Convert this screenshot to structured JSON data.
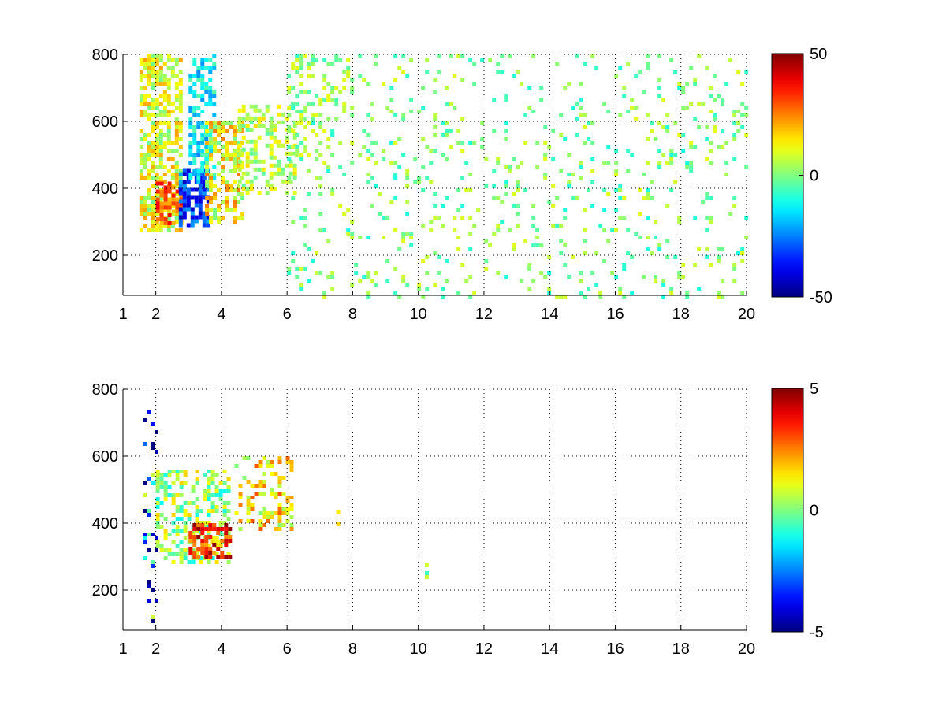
{
  "chart_data": [
    {
      "type": "heatmap",
      "title": "",
      "xlabel": "",
      "ylabel": "",
      "xlim": [
        1,
        20
      ],
      "ylim": [
        80,
        800
      ],
      "xticks": [
        1,
        2,
        4,
        6,
        8,
        10,
        12,
        14,
        16,
        18,
        20
      ],
      "yticks": [
        200,
        400,
        600,
        800
      ],
      "grid": true,
      "colormap": "jet",
      "colorbar": {
        "min": -50,
        "max": 50,
        "ticks": [
          50,
          0,
          -50
        ],
        "placement": "right"
      },
      "regions": [
        {
          "x": [
            1.5,
            2.8
          ],
          "y": [
            280,
            800
          ],
          "value": 10,
          "density": 0.6,
          "spread": 12
        },
        {
          "x": [
            2.0,
            2.8
          ],
          "y": [
            300,
            420
          ],
          "value": 28,
          "density": 0.7,
          "spread": 10
        },
        {
          "x": [
            2.7,
            3.6
          ],
          "y": [
            290,
            460
          ],
          "value": -32,
          "density": 0.75,
          "spread": 12
        },
        {
          "x": [
            3.0,
            3.8
          ],
          "y": [
            420,
            800
          ],
          "value": -14,
          "density": 0.55,
          "spread": 10
        },
        {
          "x": [
            3.5,
            4.6
          ],
          "y": [
            300,
            600
          ],
          "value": 12,
          "density": 0.55,
          "spread": 14
        },
        {
          "x": [
            4.5,
            6.2
          ],
          "y": [
            380,
            650
          ],
          "value": 6,
          "density": 0.4,
          "spread": 10
        },
        {
          "x": [
            6.0,
            8.0
          ],
          "y": [
            500,
            800
          ],
          "value": 3,
          "density": 0.2,
          "spread": 8
        },
        {
          "x": [
            6.0,
            20.0
          ],
          "y": [
            80,
            800
          ],
          "value": 0,
          "density": 0.09,
          "spread": 10
        }
      ]
    },
    {
      "type": "heatmap",
      "title": "",
      "xlabel": "",
      "ylabel": "",
      "xlim": [
        1,
        20
      ],
      "ylim": [
        80,
        800
      ],
      "xticks": [
        1,
        2,
        4,
        6,
        8,
        10,
        12,
        14,
        16,
        18,
        20
      ],
      "yticks": [
        200,
        400,
        600,
        800
      ],
      "grid": true,
      "colormap": "jet",
      "colorbar": {
        "min": -5,
        "max": 5,
        "ticks": [
          5,
          0,
          -5
        ],
        "placement": "right"
      },
      "regions": [
        {
          "x": [
            1.6,
            2.0
          ],
          "y": [
            80,
            760
          ],
          "value": -3,
          "density": 0.2,
          "spread": 4
        },
        {
          "x": [
            2.0,
            4.2
          ],
          "y": [
            280,
            560
          ],
          "value": 0.3,
          "density": 0.45,
          "spread": 1.5
        },
        {
          "x": [
            3.0,
            4.3
          ],
          "y": [
            300,
            400
          ],
          "value": 3.5,
          "density": 0.6,
          "spread": 1.5
        },
        {
          "x": [
            4.4,
            6.2
          ],
          "y": [
            380,
            600
          ],
          "value": 1.5,
          "density": 0.3,
          "spread": 1.5
        },
        {
          "x": [
            7.5,
            7.6
          ],
          "y": [
            400,
            450
          ],
          "value": 1,
          "density": 0.5,
          "spread": 1
        },
        {
          "x": [
            10.2,
            10.3
          ],
          "y": [
            230,
            280
          ],
          "value": 0,
          "density": 0.6,
          "spread": 1
        }
      ]
    }
  ]
}
